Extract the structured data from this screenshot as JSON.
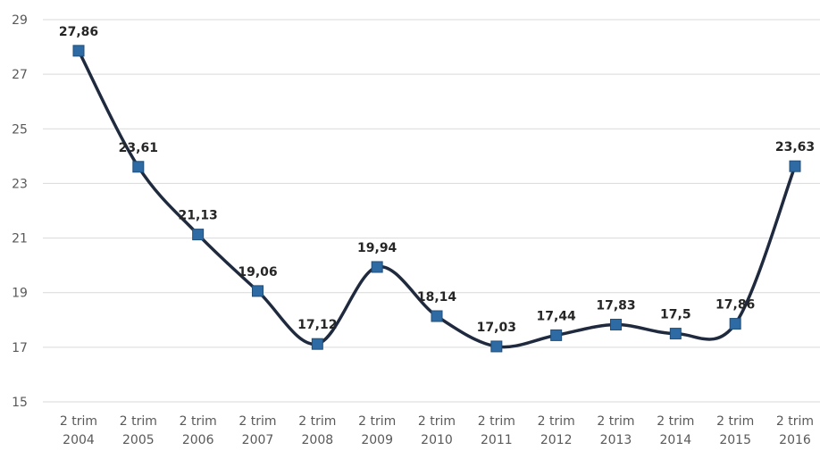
{
  "chart_data": {
    "type": "line",
    "title": "",
    "xlabel": "",
    "ylabel": "",
    "categories": [
      [
        "2 trim",
        "2004"
      ],
      [
        "2 trim",
        "2005"
      ],
      [
        "2 trim",
        "2006"
      ],
      [
        "2 trim",
        "2007"
      ],
      [
        "2 trim",
        "2008"
      ],
      [
        "2 trim",
        "2009"
      ],
      [
        "2 trim",
        "2010"
      ],
      [
        "2 trim",
        "2011"
      ],
      [
        "2 trim",
        "2012"
      ],
      [
        "2 trim",
        "2013"
      ],
      [
        "2 trim",
        "2014"
      ],
      [
        "2 trim",
        "2015"
      ],
      [
        "2 trim",
        "2016"
      ]
    ],
    "series": [
      {
        "values": [
          27.86,
          23.61,
          21.13,
          19.06,
          17.12,
          19.94,
          18.14,
          17.03,
          17.44,
          17.83,
          17.5,
          17.86,
          23.63
        ],
        "labels": [
          "27,86",
          "23,61",
          "21,13",
          "19,06",
          "17,12",
          "19,94",
          "18,14",
          "17,03",
          "17,44",
          "17,83",
          "17,5",
          "17,86",
          "23,63"
        ]
      }
    ],
    "yticks": [
      "15",
      "17",
      "19",
      "21",
      "23",
      "25",
      "27",
      "29"
    ],
    "ylim": [
      15,
      29
    ],
    "grid": true,
    "legend": "none",
    "colors": {
      "line": "#1f2a3f",
      "marker": "#2e6aa3",
      "grid": "#d9d9d9",
      "text": "#595959"
    }
  }
}
